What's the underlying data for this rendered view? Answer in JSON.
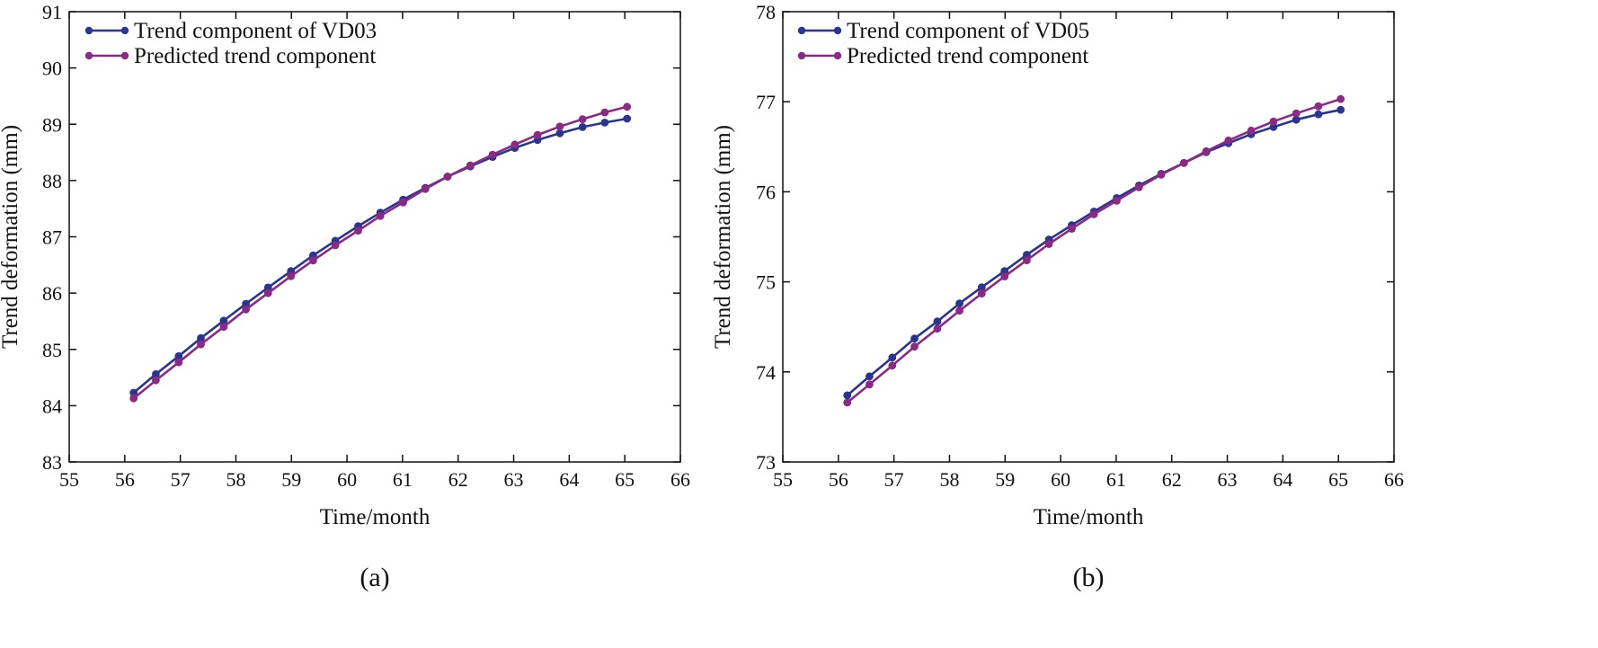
{
  "chart_data": [
    {
      "type": "line",
      "panel_label": "(a)",
      "xlabel": "Time/month",
      "ylabel": "Trend deformation (mm)",
      "xlim": [
        55,
        66
      ],
      "ylim": [
        83,
        91
      ],
      "xticks": [
        55,
        56,
        57,
        58,
        59,
        60,
        61,
        62,
        63,
        64,
        65,
        66
      ],
      "yticks": [
        83,
        84,
        85,
        86,
        87,
        88,
        89,
        90,
        91
      ],
      "grid": false,
      "legend_position": "top-left",
      "series": [
        {
          "name": "Trend component of VD03",
          "color": "#2b3590",
          "x": [
            56.16,
            56.56,
            56.97,
            57.37,
            57.78,
            58.18,
            58.58,
            58.99,
            59.39,
            59.79,
            60.2,
            60.6,
            61.01,
            61.41,
            61.81,
            62.22,
            62.62,
            63.02,
            63.43,
            63.83,
            64.24,
            64.64,
            65.04
          ],
          "y": [
            84.23,
            84.56,
            84.88,
            85.2,
            85.51,
            85.81,
            86.1,
            86.39,
            86.67,
            86.93,
            87.19,
            87.43,
            87.66,
            87.87,
            88.07,
            88.25,
            88.42,
            88.58,
            88.72,
            88.84,
            88.95,
            89.03,
            89.1
          ]
        },
        {
          "name": "Predicted trend component",
          "color": "#8b2a85",
          "x": [
            56.16,
            56.56,
            56.97,
            57.37,
            57.78,
            58.18,
            58.58,
            58.99,
            59.39,
            59.79,
            60.2,
            60.6,
            61.01,
            61.41,
            61.81,
            62.22,
            62.62,
            63.02,
            63.43,
            63.83,
            64.24,
            64.64,
            65.04
          ],
          "y": [
            84.13,
            84.45,
            84.77,
            85.09,
            85.4,
            85.71,
            86.0,
            86.3,
            86.58,
            86.85,
            87.11,
            87.37,
            87.61,
            87.85,
            88.07,
            88.27,
            88.46,
            88.64,
            88.81,
            88.96,
            89.09,
            89.21,
            89.31
          ]
        }
      ]
    },
    {
      "type": "line",
      "panel_label": "(b)",
      "xlabel": "Time/month",
      "ylabel": "Trend deformation (mm)",
      "xlim": [
        55,
        66
      ],
      "ylim": [
        73,
        78
      ],
      "xticks": [
        55,
        56,
        57,
        58,
        59,
        60,
        61,
        62,
        63,
        64,
        65,
        66
      ],
      "yticks": [
        73,
        74,
        75,
        76,
        77,
        78
      ],
      "grid": false,
      "legend_position": "top-left",
      "series": [
        {
          "name": "Trend component of VD05",
          "color": "#2b3590",
          "x": [
            56.16,
            56.56,
            56.97,
            57.37,
            57.78,
            58.18,
            58.58,
            58.99,
            59.39,
            59.79,
            60.2,
            60.6,
            61.01,
            61.41,
            61.81,
            62.22,
            62.62,
            63.02,
            63.43,
            63.83,
            64.24,
            64.64,
            65.04
          ],
          "y": [
            73.74,
            73.95,
            74.16,
            74.37,
            74.56,
            74.76,
            74.94,
            75.12,
            75.3,
            75.47,
            75.63,
            75.78,
            75.93,
            76.07,
            76.2,
            76.32,
            76.44,
            76.54,
            76.64,
            76.72,
            76.8,
            76.86,
            76.91
          ]
        },
        {
          "name": "Predicted trend component",
          "color": "#8b2a85",
          "x": [
            56.16,
            56.56,
            56.97,
            57.37,
            57.78,
            58.18,
            58.58,
            58.99,
            59.39,
            59.79,
            60.2,
            60.6,
            61.01,
            61.41,
            61.81,
            62.22,
            62.62,
            63.02,
            63.43,
            63.83,
            64.24,
            64.64,
            65.04
          ],
          "y": [
            73.66,
            73.86,
            74.07,
            74.28,
            74.48,
            74.68,
            74.87,
            75.06,
            75.24,
            75.42,
            75.59,
            75.75,
            75.9,
            76.05,
            76.19,
            76.32,
            76.45,
            76.57,
            76.68,
            76.78,
            76.87,
            76.95,
            77.03
          ]
        }
      ]
    }
  ]
}
